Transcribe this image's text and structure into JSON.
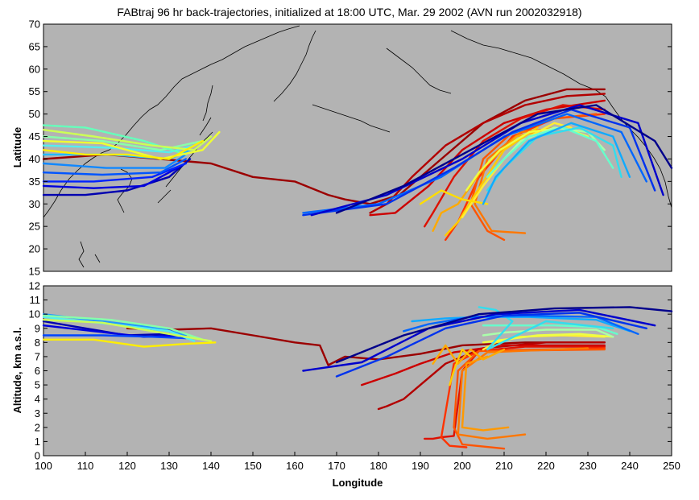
{
  "chart_data": [
    {
      "type": "line",
      "title": "FABtraj 96 hr back-trajectories, initialized at 18:00 UTC, Mar. 29 2002 (AVN run 2002032918)",
      "xlabel": "",
      "ylabel": "Latitude",
      "xlim": [
        100,
        250
      ],
      "ylim": [
        15,
        70
      ],
      "xticks": [],
      "yticks": [
        "15",
        "20",
        "25",
        "30",
        "35",
        "40",
        "45",
        "50",
        "55",
        "60",
        "65",
        "70"
      ],
      "background": "#b3b3b3",
      "series": [
        {
          "color": "#9b0000",
          "x": [
            100,
            115,
            128,
            140,
            150,
            160,
            168,
            172,
            178,
            185,
            195,
            205,
            215,
            225,
            234
          ],
          "y": [
            40,
            41,
            40,
            39,
            36,
            35,
            32,
            31,
            30,
            32,
            40,
            48,
            53,
            55.5,
            55.5
          ]
        },
        {
          "color": "#b30000",
          "x": [
            178,
            182,
            188,
            196,
            205,
            215,
            225,
            234
          ],
          "y": [
            28,
            30,
            36,
            43,
            48,
            52,
            54,
            54.5
          ]
        },
        {
          "color": "#cc0000",
          "x": [
            178,
            184,
            192,
            200,
            210,
            220,
            234
          ],
          "y": [
            27.5,
            28,
            34,
            42,
            48,
            51,
            53
          ]
        },
        {
          "color": "#dd1100",
          "x": [
            191,
            193,
            198,
            205,
            214,
            224,
            234
          ],
          "y": [
            25,
            28,
            36,
            44,
            49,
            52,
            51
          ]
        },
        {
          "color": "#ff3300",
          "x": [
            196,
            199,
            204,
            212,
            222,
            234
          ],
          "y": [
            22,
            26,
            36,
            45,
            49,
            50
          ]
        },
        {
          "color": "#ff5500",
          "x": [
            210,
            206,
            202,
            205,
            212,
            222,
            232
          ],
          "y": [
            22,
            24,
            30,
            40,
            46,
            49,
            50
          ]
        },
        {
          "color": "#ff7700",
          "x": [
            215,
            207,
            203,
            206,
            214,
            224
          ],
          "y": [
            23.5,
            24,
            30,
            40,
            46,
            47
          ]
        },
        {
          "color": "#ffaa00",
          "x": [
            193,
            195,
            199,
            205,
            213,
            222
          ],
          "y": [
            24,
            28,
            30,
            38,
            45,
            47
          ]
        },
        {
          "color": "#ffcc00",
          "x": [
            196,
            199,
            203,
            210,
            218
          ],
          "y": [
            23,
            26,
            32,
            42,
            47
          ]
        },
        {
          "color": "#ffee33",
          "x": [
            200,
            205,
            210,
            216,
            222,
            226
          ],
          "y": [
            27,
            34,
            40,
            45,
            48,
            47
          ]
        },
        {
          "color": "#ffdd00",
          "x": [
            190,
            195,
            200,
            206
          ],
          "y": [
            30,
            33,
            31,
            30
          ]
        },
        {
          "color": "#eeff44",
          "x": [
            201,
            204,
            209,
            216,
            224,
            230
          ],
          "y": [
            33,
            37,
            42,
            46,
            47,
            45
          ]
        },
        {
          "color": "#aaffaa",
          "x": [
            206,
            209,
            214,
            222,
            230,
            234
          ],
          "y": [
            36,
            39,
            44,
            47,
            46,
            42
          ]
        },
        {
          "color": "#66ffcc",
          "x": [
            206,
            210,
            216,
            224,
            232,
            236
          ],
          "y": [
            36,
            40,
            45,
            47,
            44,
            38
          ]
        },
        {
          "color": "#33ddee",
          "x": [
            206,
            210,
            218,
            228,
            236,
            238
          ],
          "y": [
            33,
            38,
            45,
            47,
            43,
            36
          ]
        },
        {
          "color": "#11aaff",
          "x": [
            205,
            208,
            216,
            226,
            236,
            240
          ],
          "y": [
            30,
            36,
            44,
            48,
            45,
            36
          ]
        },
        {
          "color": "#0066ff",
          "x": [
            162,
            180,
            195,
            210,
            225,
            238,
            244
          ],
          "y": [
            28,
            30,
            36,
            45,
            50,
            46,
            35
          ]
        },
        {
          "color": "#0033ee",
          "x": [
            162,
            182,
            198,
            212,
            226,
            240,
            246
          ],
          "y": [
            27.5,
            30,
            38,
            46,
            51,
            47,
            33
          ]
        },
        {
          "color": "#0000cc",
          "x": [
            164,
            182,
            200,
            214,
            228,
            242,
            248
          ],
          "y": [
            27.5,
            32,
            40,
            48,
            52,
            48,
            32
          ]
        },
        {
          "color": "#00008b",
          "x": [
            170,
            186,
            204,
            218,
            232,
            246,
            250
          ],
          "y": [
            28,
            34,
            43,
            50,
            52,
            44,
            38
          ]
        },
        {
          "color": "#0000b0",
          "x": [
            100,
            110,
            120,
            130,
            135
          ],
          "y": [
            32,
            32,
            33,
            36,
            40
          ]
        },
        {
          "color": "#0000dd",
          "x": [
            100,
            112,
            124,
            132
          ],
          "y": [
            34,
            33.5,
            34,
            38
          ]
        },
        {
          "color": "#0022ff",
          "x": [
            100,
            112,
            126,
            134
          ],
          "y": [
            35,
            35,
            36,
            39
          ]
        },
        {
          "color": "#0055ff",
          "x": [
            100,
            114,
            128,
            134
          ],
          "y": [
            37,
            36.5,
            37,
            40
          ]
        },
        {
          "color": "#1188ff",
          "x": [
            100,
            115,
            129,
            134
          ],
          "y": [
            39,
            38,
            38,
            41
          ]
        },
        {
          "color": "#22bbff",
          "x": [
            100,
            116,
            130,
            135
          ],
          "y": [
            41,
            41,
            40,
            42
          ]
        },
        {
          "color": "#55eeee",
          "x": [
            100,
            116,
            130,
            136
          ],
          "y": [
            43,
            42.5,
            41.5,
            43
          ]
        },
        {
          "color": "#88ffaa",
          "x": [
            100,
            114,
            128,
            138
          ],
          "y": [
            45,
            44,
            42,
            44
          ]
        },
        {
          "color": "#66ffbb",
          "x": [
            100,
            110,
            124,
            134
          ],
          "y": [
            47.5,
            47,
            44,
            41
          ]
        },
        {
          "color": "#ccff55",
          "x": [
            100,
            112,
            126,
            136,
            140
          ],
          "y": [
            46.5,
            45,
            43,
            42,
            45
          ]
        },
        {
          "color": "#eeff33",
          "x": [
            100,
            114,
            128,
            138,
            142
          ],
          "y": [
            44,
            43.5,
            40,
            42,
            46
          ]
        },
        {
          "color": "#ffee00",
          "x": [
            100,
            110,
            120,
            130,
            138
          ],
          "y": [
            42,
            41,
            41,
            40,
            44
          ]
        }
      ]
    },
    {
      "type": "line",
      "xlabel": "Longitude",
      "ylabel": "Altitude, km a.s.l.",
      "xlim": [
        100,
        250
      ],
      "ylim": [
        0,
        12
      ],
      "xticks": [
        "100",
        "110",
        "120",
        "130",
        "140",
        "150",
        "160",
        "170",
        "180",
        "190",
        "200",
        "210",
        "220",
        "230",
        "240",
        "250"
      ],
      "yticks": [
        "0",
        "1",
        "2",
        "3",
        "4",
        "5",
        "6",
        "7",
        "8",
        "9",
        "10",
        "11",
        "12"
      ],
      "background": "#b3b3b3",
      "series": [
        {
          "color": "#9b0000",
          "x": [
            120,
            130,
            140,
            150,
            160,
            166,
            168,
            172,
            180,
            190,
            200,
            215,
            234
          ],
          "y": [
            9,
            8.9,
            9,
            8.5,
            8,
            7.8,
            6.4,
            7,
            6.8,
            7.2,
            7.8,
            8,
            8
          ]
        },
        {
          "color": "#b30000",
          "x": [
            180,
            182,
            186,
            190,
            196,
            205,
            220,
            234
          ],
          "y": [
            3.3,
            3.5,
            4,
            5,
            6.5,
            7.6,
            8,
            8
          ]
        },
        {
          "color": "#cc0000",
          "x": [
            176,
            178,
            184,
            190,
            198,
            210,
            234
          ],
          "y": [
            5,
            5.2,
            5.8,
            6.5,
            7.3,
            7.8,
            7.8
          ]
        },
        {
          "color": "#dd1100",
          "x": [
            191,
            193,
            195,
            198,
            200,
            204,
            215,
            234
          ],
          "y": [
            1.2,
            1.2,
            1.3,
            1.4,
            6,
            7.4,
            7.7,
            7.7
          ]
        },
        {
          "color": "#ff3300",
          "x": [
            201,
            197,
            195,
            198,
            204,
            234
          ],
          "y": [
            0.6,
            0.7,
            1.3,
            6.5,
            7.4,
            7.6
          ]
        },
        {
          "color": "#ff5500",
          "x": [
            210,
            200,
            198,
            199,
            204,
            234
          ],
          "y": [
            0.5,
            0.8,
            2,
            6,
            7.4,
            7.5
          ]
        },
        {
          "color": "#ff7700",
          "x": [
            215,
            206,
            199,
            200,
            206,
            230
          ],
          "y": [
            1.5,
            1.2,
            1.5,
            6,
            7.3,
            7.6
          ]
        },
        {
          "color": "#ff9900",
          "x": [
            211,
            205,
            200,
            201,
            206
          ],
          "y": [
            2,
            1.8,
            2,
            6.5,
            7
          ]
        },
        {
          "color": "#ffaa00",
          "x": [
            193,
            196,
            199,
            202,
            205,
            210
          ],
          "y": [
            6.5,
            7.8,
            6.5,
            7.5,
            6.8,
            7.5
          ]
        },
        {
          "color": "#ffcc00",
          "x": [
            197,
            198,
            199,
            200,
            202
          ],
          "y": [
            5,
            6,
            6.8,
            7.5,
            7
          ]
        },
        {
          "color": "#ffee33",
          "x": [
            205,
            208,
            214,
            224,
            234
          ],
          "y": [
            7.5,
            8,
            8.4,
            8.5,
            8.4
          ]
        },
        {
          "color": "#eeff44",
          "x": [
            205,
            210,
            218,
            228,
            236
          ],
          "y": [
            8,
            8.2,
            8.5,
            8.6,
            8.4
          ]
        },
        {
          "color": "#aaffaa",
          "x": [
            205,
            210,
            220,
            232,
            236
          ],
          "y": [
            8.5,
            8.7,
            8.9,
            8.9,
            8.4
          ]
        },
        {
          "color": "#66ffcc",
          "x": [
            205,
            212,
            222,
            232,
            237
          ],
          "y": [
            9.2,
            9.2,
            9.2,
            9.1,
            8.6
          ]
        },
        {
          "color": "#33ddee",
          "x": [
            204,
            208,
            212,
            206,
            220,
            236
          ],
          "y": [
            10.5,
            10.3,
            9.5,
            7.5,
            9.5,
            9
          ]
        },
        {
          "color": "#11aaff",
          "x": [
            188,
            196,
            204,
            216,
            232,
            240
          ],
          "y": [
            9.5,
            9.7,
            9.8,
            9.8,
            9.6,
            8.8
          ]
        },
        {
          "color": "#0066ff",
          "x": [
            186,
            192,
            202,
            214,
            232,
            242
          ],
          "y": [
            8.8,
            9.3,
            9.8,
            9.9,
            9.8,
            8.6
          ]
        },
        {
          "color": "#0033ee",
          "x": [
            170,
            182,
            196,
            210,
            228,
            244
          ],
          "y": [
            5.6,
            7,
            9,
            9.9,
            10.1,
            9
          ]
        },
        {
          "color": "#0000cc",
          "x": [
            162,
            176,
            192,
            208,
            228,
            246
          ],
          "y": [
            6,
            6.6,
            9,
            10,
            10.3,
            9.2
          ]
        },
        {
          "color": "#00008b",
          "x": [
            170,
            186,
            204,
            222,
            240,
            250
          ],
          "y": [
            6.6,
            8.5,
            10,
            10.4,
            10.5,
            10.2
          ]
        },
        {
          "color": "#0000b0",
          "x": [
            100,
            110,
            120,
            130
          ],
          "y": [
            9.5,
            9,
            8.5,
            8.6
          ]
        },
        {
          "color": "#0000dd",
          "x": [
            100,
            112,
            124,
            132
          ],
          "y": [
            9.2,
            8.8,
            8.4,
            8.5
          ]
        },
        {
          "color": "#0044ff",
          "x": [
            100,
            114,
            126,
            134
          ],
          "y": [
            8.5,
            8.5,
            8.4,
            8.3
          ]
        },
        {
          "color": "#2299ff",
          "x": [
            100,
            114,
            128,
            134
          ],
          "y": [
            10,
            9.5,
            9,
            8.5
          ]
        },
        {
          "color": "#55eeee",
          "x": [
            100,
            116,
            130,
            136
          ],
          "y": [
            9.8,
            9.3,
            8.8,
            8.1
          ]
        },
        {
          "color": "#88ffaa",
          "x": [
            100,
            116,
            130,
            138
          ],
          "y": [
            9.9,
            9.6,
            9,
            8.2
          ]
        },
        {
          "color": "#ccff55",
          "x": [
            100,
            114,
            130,
            140
          ],
          "y": [
            9.6,
            9.4,
            8.6,
            8.1
          ]
        },
        {
          "color": "#ffee00",
          "x": [
            100,
            112,
            124,
            134,
            141
          ],
          "y": [
            8.2,
            8.2,
            7.7,
            7.9,
            8
          ]
        }
      ]
    }
  ],
  "map": {
    "coast_color": "#000000"
  }
}
